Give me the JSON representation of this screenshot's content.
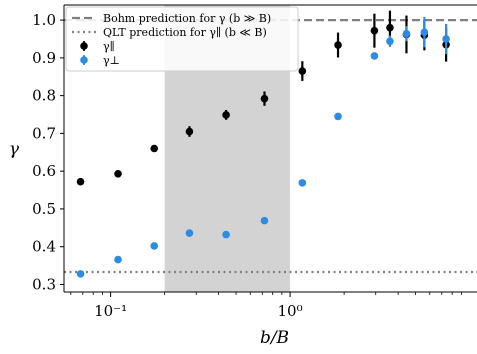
{
  "chart_data": {
    "type": "scatter",
    "title": "",
    "xlabel": "b/B",
    "ylabel": "γ",
    "x_scale": "log",
    "xlim": [
      0.055,
      11
    ],
    "ylim": [
      0.28,
      1.04
    ],
    "x_tick_values": [
      0.1,
      1
    ],
    "x_tick_labels": [
      "10⁻¹",
      "10⁰"
    ],
    "y_ticks": [
      0.3,
      0.4,
      0.5,
      0.6,
      0.7,
      0.8,
      0.9,
      1.0
    ],
    "y_tick_labels": [
      "0.3",
      "0.4",
      "0.5",
      "0.6",
      "0.7",
      "0.8",
      "0.9",
      "1.0"
    ],
    "shaded_region": {
      "x": [
        0.2,
        1.0
      ],
      "color": "#d3d3d3"
    },
    "reference_lines": [
      {
        "name": "Bohm prediction for γ (b ≫ B)",
        "y": 1.0,
        "style": "dashed",
        "color": "#808080"
      },
      {
        "name": "QLT prediction for γ∥ (b ≪ B)",
        "y": 0.333,
        "style": "dotted",
        "color": "#808080"
      }
    ],
    "series": [
      {
        "name": "γ∥",
        "color": "#000000",
        "points": [
          {
            "x": 0.068,
            "y": 0.572,
            "err": 0.007
          },
          {
            "x": 0.11,
            "y": 0.593,
            "err": 0.005
          },
          {
            "x": 0.175,
            "y": 0.66,
            "err": 0.009
          },
          {
            "x": 0.275,
            "y": 0.705,
            "err": 0.014
          },
          {
            "x": 0.44,
            "y": 0.749,
            "err": 0.013
          },
          {
            "x": 0.72,
            "y": 0.792,
            "err": 0.019
          },
          {
            "x": 1.17,
            "y": 0.865,
            "err": 0.026
          },
          {
            "x": 1.85,
            "y": 0.934,
            "err": 0.033
          },
          {
            "x": 2.95,
            "y": 0.972,
            "err": 0.045
          },
          {
            "x": 3.6,
            "y": 0.98,
            "err": 0.045
          },
          {
            "x": 4.45,
            "y": 0.962,
            "err": 0.05
          },
          {
            "x": 5.6,
            "y": 0.96,
            "err": 0.04
          },
          {
            "x": 7.4,
            "y": 0.935,
            "err": 0.045
          }
        ]
      },
      {
        "name": "γ⊥",
        "color": "#2b8ce6",
        "points": [
          {
            "x": 0.068,
            "y": 0.328,
            "err": 0.005
          },
          {
            "x": 0.11,
            "y": 0.366,
            "err": 0.004
          },
          {
            "x": 0.175,
            "y": 0.402,
            "err": 0.008
          },
          {
            "x": 0.275,
            "y": 0.436,
            "err": 0.005
          },
          {
            "x": 0.44,
            "y": 0.432,
            "err": 0.007
          },
          {
            "x": 0.72,
            "y": 0.469,
            "err": 0.006
          },
          {
            "x": 1.17,
            "y": 0.569,
            "err": 0.007
          },
          {
            "x": 1.85,
            "y": 0.745,
            "err": 0.004
          },
          {
            "x": 2.95,
            "y": 0.905,
            "err": 0.004
          },
          {
            "x": 3.6,
            "y": 0.944,
            "err": 0.015
          },
          {
            "x": 4.45,
            "y": 0.964,
            "err": 0.02
          },
          {
            "x": 5.6,
            "y": 0.968,
            "err": 0.04
          },
          {
            "x": 7.4,
            "y": 0.95,
            "err": 0.04
          }
        ]
      }
    ],
    "legend": {
      "placement": "top-left",
      "entries": [
        "Bohm prediction for γ (b ≫ B)",
        "QLT prediction for γ∥ (b ≪ B)",
        "γ∥",
        "γ⊥"
      ]
    }
  }
}
